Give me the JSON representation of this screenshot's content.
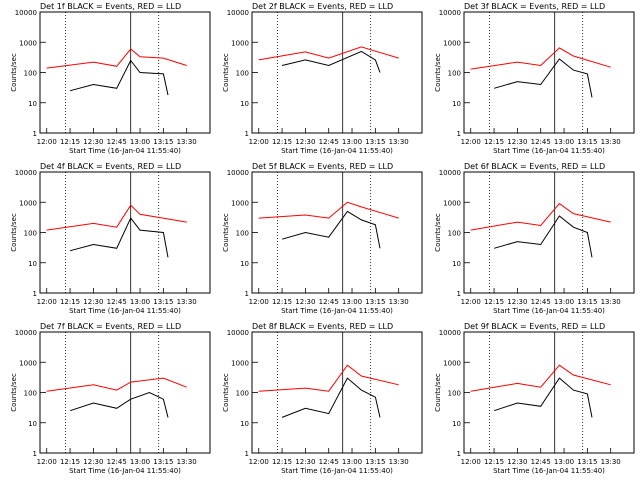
{
  "chart_data": [
    {
      "title": "Det 1f BLACK = Events, RED = LLD",
      "black": [
        [
          12.25,
          25
        ],
        [
          12.5,
          40
        ],
        [
          12.75,
          30
        ],
        [
          12.9,
          250
        ],
        [
          13.0,
          100
        ],
        [
          13.25,
          90
        ],
        [
          13.3,
          18
        ]
      ],
      "red": [
        [
          12.0,
          140
        ],
        [
          12.5,
          220
        ],
        [
          12.75,
          160
        ],
        [
          12.9,
          600
        ],
        [
          13.0,
          330
        ],
        [
          13.25,
          300
        ],
        [
          13.5,
          170
        ]
      ]
    },
    {
      "title": "Det 2f BLACK = Events, RED = LLD",
      "black": [
        [
          12.25,
          170
        ],
        [
          12.5,
          260
        ],
        [
          12.75,
          170
        ],
        [
          13.1,
          500
        ],
        [
          13.25,
          260
        ],
        [
          13.3,
          100
        ]
      ],
      "red": [
        [
          12.0,
          260
        ],
        [
          12.5,
          480
        ],
        [
          12.75,
          300
        ],
        [
          13.1,
          700
        ],
        [
          13.5,
          300
        ]
      ]
    },
    {
      "title": "Det 3f BLACK = Events, RED = LLD",
      "black": [
        [
          12.25,
          30
        ],
        [
          12.5,
          50
        ],
        [
          12.75,
          40
        ],
        [
          12.95,
          280
        ],
        [
          13.1,
          120
        ],
        [
          13.25,
          90
        ],
        [
          13.3,
          15
        ]
      ],
      "red": [
        [
          12.0,
          130
        ],
        [
          12.5,
          220
        ],
        [
          12.75,
          170
        ],
        [
          12.95,
          650
        ],
        [
          13.1,
          350
        ],
        [
          13.5,
          150
        ]
      ]
    },
    {
      "title": "Det 4f BLACK = Events, RED = LLD",
      "black": [
        [
          12.25,
          25
        ],
        [
          12.5,
          40
        ],
        [
          12.75,
          30
        ],
        [
          12.9,
          300
        ],
        [
          13.0,
          120
        ],
        [
          13.25,
          100
        ],
        [
          13.3,
          15
        ]
      ],
      "red": [
        [
          12.0,
          120
        ],
        [
          12.5,
          200
        ],
        [
          12.75,
          150
        ],
        [
          12.9,
          800
        ],
        [
          13.0,
          400
        ],
        [
          13.5,
          220
        ]
      ]
    },
    {
      "title": "Det 5f BLACK = Events, RED = LLD",
      "black": [
        [
          12.25,
          60
        ],
        [
          12.5,
          100
        ],
        [
          12.75,
          70
        ],
        [
          12.95,
          500
        ],
        [
          13.1,
          260
        ],
        [
          13.25,
          180
        ],
        [
          13.3,
          30
        ]
      ],
      "red": [
        [
          12.0,
          300
        ],
        [
          12.5,
          380
        ],
        [
          12.75,
          300
        ],
        [
          12.95,
          1000
        ],
        [
          13.1,
          700
        ],
        [
          13.5,
          300
        ]
      ]
    },
    {
      "title": "Det 6f BLACK = Events, RED = LLD",
      "black": [
        [
          12.25,
          30
        ],
        [
          12.5,
          50
        ],
        [
          12.75,
          40
        ],
        [
          12.95,
          350
        ],
        [
          13.1,
          150
        ],
        [
          13.25,
          100
        ],
        [
          13.3,
          15
        ]
      ],
      "red": [
        [
          12.0,
          120
        ],
        [
          12.5,
          220
        ],
        [
          12.75,
          170
        ],
        [
          12.95,
          900
        ],
        [
          13.1,
          420
        ],
        [
          13.5,
          220
        ]
      ]
    },
    {
      "title": "Det 7f BLACK = Events, RED = LLD",
      "black": [
        [
          12.25,
          25
        ],
        [
          12.5,
          45
        ],
        [
          12.75,
          30
        ],
        [
          12.9,
          60
        ],
        [
          13.1,
          100
        ],
        [
          13.25,
          60
        ],
        [
          13.3,
          15
        ]
      ],
      "red": [
        [
          12.0,
          110
        ],
        [
          12.5,
          180
        ],
        [
          12.75,
          120
        ],
        [
          12.9,
          220
        ],
        [
          13.25,
          300
        ],
        [
          13.5,
          150
        ]
      ]
    },
    {
      "title": "Det 8f BLACK = Events, RED = LLD",
      "black": [
        [
          12.25,
          15
        ],
        [
          12.5,
          30
        ],
        [
          12.75,
          20
        ],
        [
          12.95,
          300
        ],
        [
          13.1,
          120
        ],
        [
          13.25,
          70
        ],
        [
          13.3,
          15
        ]
      ],
      "red": [
        [
          12.0,
          110
        ],
        [
          12.5,
          140
        ],
        [
          12.75,
          110
        ],
        [
          12.95,
          800
        ],
        [
          13.1,
          350
        ],
        [
          13.5,
          180
        ]
      ]
    },
    {
      "title": "Det 9f BLACK = Events, RED = LLD",
      "black": [
        [
          12.25,
          25
        ],
        [
          12.5,
          45
        ],
        [
          12.75,
          35
        ],
        [
          12.95,
          300
        ],
        [
          13.1,
          120
        ],
        [
          13.25,
          90
        ],
        [
          13.3,
          15
        ]
      ],
      "red": [
        [
          12.0,
          110
        ],
        [
          12.5,
          200
        ],
        [
          12.75,
          150
        ],
        [
          12.95,
          800
        ],
        [
          13.1,
          380
        ],
        [
          13.5,
          180
        ]
      ]
    }
  ],
  "common": {
    "type": "line",
    "ylabel": "Counts/sec",
    "xlabel": "Start Time (16-Jan-04 11:55:40)",
    "x_ticks": [
      "12:00",
      "12:15",
      "12:30",
      "12:45",
      "13:00",
      "13:15",
      "13:30"
    ],
    "y_ticks": [
      "1",
      "10",
      "100",
      "1000",
      "10000"
    ],
    "yscale": "log",
    "series": [
      {
        "color": "#000000"
      },
      {
        "color": "#ff0000"
      }
    ]
  }
}
